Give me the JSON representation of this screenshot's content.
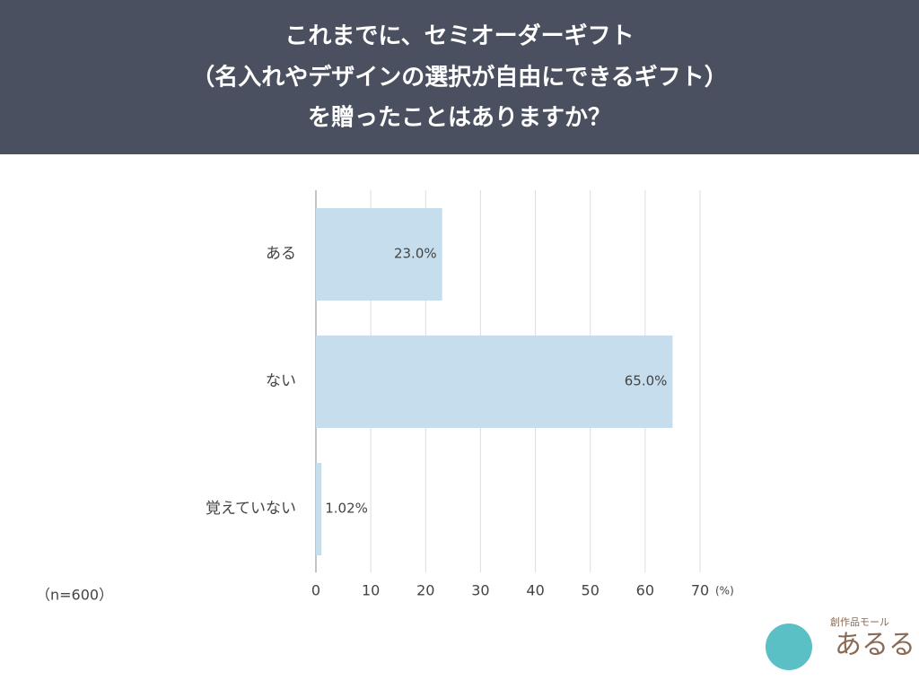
{
  "chart_data": {
    "type": "hbar",
    "title": [
      "これまでに、セミオーダーギフト",
      "（名入れやデザインの選択が自由にできるギフト）",
      "を贈ったことはありますか？"
    ],
    "categories": [
      "ある",
      "ない",
      "覚えていない"
    ],
    "values": [
      23.0,
      65.0,
      1.02
    ],
    "value_labels": [
      "23.0%",
      "65.0%",
      "1.02%"
    ],
    "color": "#c5dded",
    "xlim": [
      0,
      70
    ],
    "xticks": [
      0,
      10,
      20,
      30,
      40,
      50,
      60,
      70
    ],
    "x_unit": "(%)",
    "note": "（n=600）",
    "grid": true
  },
  "logo": {
    "tagline": "創作品モール",
    "name": "あるる"
  }
}
